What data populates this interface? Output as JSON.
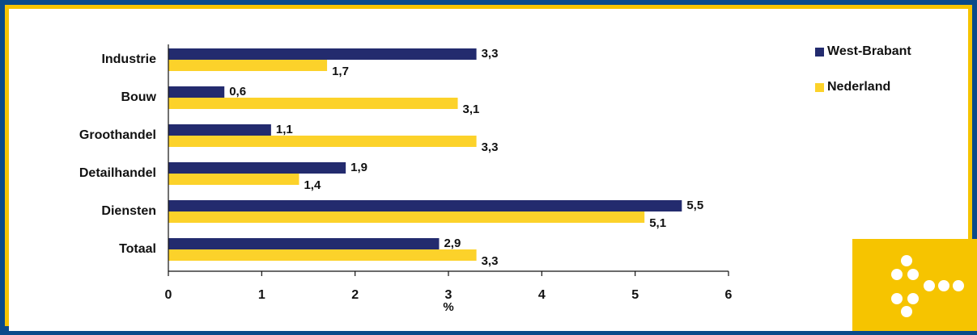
{
  "colors": {
    "frame_outer": "#0a4a8a",
    "frame_inner": "#f6c400",
    "panel": "#ffffff",
    "west_brabant": "#232b6e",
    "nederland": "#fcd22a",
    "logo_bg": "#f6c400",
    "logo_dots": "#ffffff"
  },
  "chart_data": {
    "type": "bar",
    "orientation": "horizontal",
    "categories": [
      "Industrie",
      "Bouw",
      "Groothandel",
      "Detailhandel",
      "Diensten",
      "Totaal"
    ],
    "series": [
      {
        "name": "West-Brabant",
        "values": [
          3.3,
          0.6,
          1.1,
          1.9,
          5.5,
          2.9
        ],
        "labels": [
          "3,3",
          "0,6",
          "1,1",
          "1,9",
          "5,5",
          "2,9"
        ]
      },
      {
        "name": "Nederland",
        "values": [
          1.7,
          3.1,
          3.3,
          1.4,
          5.1,
          3.3
        ],
        "labels": [
          "1,7",
          "3,1",
          "3,3",
          "1,4",
          "5,1",
          "3,3"
        ]
      }
    ],
    "xlabel": "%",
    "xlim": [
      0,
      6
    ],
    "xticks": [
      "0",
      "1",
      "2",
      "3",
      "4",
      "5",
      "6"
    ],
    "grid": false,
    "legend": "top-right"
  },
  "logo": {
    "icon": "dots-arrow-icon"
  }
}
